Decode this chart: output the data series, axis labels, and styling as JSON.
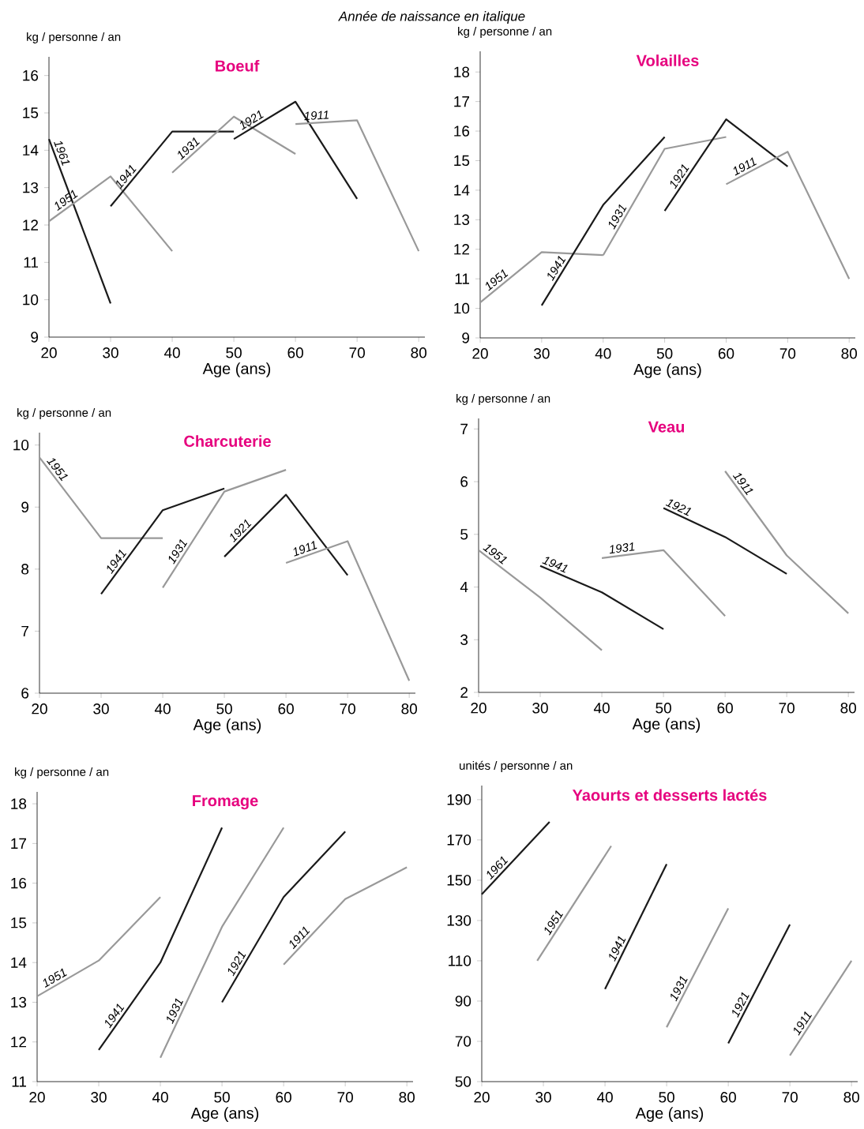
{
  "chart_data": [
    {
      "type": "line",
      "title": "Boeuf",
      "ylabel": "kg / personne / an",
      "xlabel": "Age (ans)",
      "annotations": [
        "Année de naissance en italique"
      ],
      "xlim": [
        20,
        81
      ],
      "ylim": [
        9,
        16.5
      ],
      "xticks": [
        20,
        30,
        40,
        50,
        60,
        70,
        80
      ],
      "yticks": [
        9,
        10,
        11,
        12,
        13,
        14,
        15,
        16
      ],
      "series": [
        {
          "name": "1961",
          "color": "#1a1a1a",
          "x": [
            20,
            30
          ],
          "values": [
            14.3,
            9.9
          ]
        },
        {
          "name": "1951",
          "color": "#999999",
          "x": [
            20,
            30,
            40
          ],
          "values": [
            12.1,
            13.3,
            11.3
          ]
        },
        {
          "name": "1941",
          "color": "#1a1a1a",
          "x": [
            30,
            40,
            50
          ],
          "values": [
            12.5,
            14.5,
            14.5
          ]
        },
        {
          "name": "1931",
          "color": "#999999",
          "x": [
            40,
            50,
            60
          ],
          "values": [
            13.4,
            14.9,
            13.9
          ]
        },
        {
          "name": "1921",
          "color": "#1a1a1a",
          "x": [
            50,
            60,
            70
          ],
          "values": [
            14.3,
            15.3,
            12.7
          ]
        },
        {
          "name": "1911",
          "color": "#999999",
          "x": [
            60,
            70,
            80
          ],
          "values": [
            14.7,
            14.8,
            11.3
          ]
        }
      ]
    },
    {
      "type": "line",
      "title": "Volailles",
      "ylabel": "kg / personne / an",
      "xlabel": "Age (ans)",
      "xlim": [
        20,
        81
      ],
      "ylim": [
        9,
        18.7
      ],
      "xticks": [
        20,
        30,
        40,
        50,
        60,
        70,
        80
      ],
      "yticks": [
        9,
        10,
        11,
        12,
        13,
        14,
        15,
        16,
        17,
        18
      ],
      "series": [
        {
          "name": "1951",
          "color": "#999999",
          "x": [
            20,
            30,
            40
          ],
          "values": [
            10.2,
            11.9,
            11.8
          ]
        },
        {
          "name": "1941",
          "color": "#1a1a1a",
          "x": [
            30,
            40,
            50
          ],
          "values": [
            10.1,
            13.5,
            15.8
          ]
        },
        {
          "name": "1931",
          "color": "#999999",
          "x": [
            40,
            50,
            60
          ],
          "values": [
            11.8,
            15.4,
            15.8
          ]
        },
        {
          "name": "1921",
          "color": "#1a1a1a",
          "x": [
            50,
            60,
            70
          ],
          "values": [
            13.3,
            16.4,
            14.8
          ]
        },
        {
          "name": "1911",
          "color": "#999999",
          "x": [
            60,
            70,
            80
          ],
          "values": [
            14.2,
            15.3,
            11.0
          ]
        }
      ]
    },
    {
      "type": "line",
      "title": "Charcuterie",
      "ylabel": "kg / personne / an",
      "xlabel": "Age (ans)",
      "xlim": [
        20,
        81
      ],
      "ylim": [
        6,
        10.2
      ],
      "xticks": [
        20,
        30,
        40,
        50,
        60,
        70,
        80
      ],
      "yticks": [
        6,
        7,
        8,
        9,
        10
      ],
      "series": [
        {
          "name": "1951",
          "color": "#999999",
          "x": [
            20,
            30,
            40
          ],
          "values": [
            9.8,
            8.5,
            8.5
          ]
        },
        {
          "name": "1941",
          "color": "#1a1a1a",
          "x": [
            30,
            40,
            50
          ],
          "values": [
            7.6,
            8.95,
            9.3
          ]
        },
        {
          "name": "1931",
          "color": "#999999",
          "x": [
            40,
            50,
            60
          ],
          "values": [
            7.7,
            9.25,
            9.6
          ]
        },
        {
          "name": "1921",
          "color": "#1a1a1a",
          "x": [
            50,
            60,
            70
          ],
          "values": [
            8.2,
            9.2,
            7.9
          ]
        },
        {
          "name": "1911",
          "color": "#999999",
          "x": [
            60,
            70,
            80
          ],
          "values": [
            8.1,
            8.45,
            6.2
          ]
        }
      ]
    },
    {
      "type": "line",
      "title": "Veau",
      "ylabel": "kg / personne / an",
      "xlabel": "Age (ans)",
      "xlim": [
        20,
        81
      ],
      "ylim": [
        2,
        7.2
      ],
      "xticks": [
        20,
        30,
        40,
        50,
        60,
        70,
        80
      ],
      "yticks": [
        2,
        3,
        4,
        5,
        6,
        7
      ],
      "series": [
        {
          "name": "1951",
          "color": "#999999",
          "x": [
            20,
            30,
            40
          ],
          "values": [
            4.7,
            3.8,
            2.8
          ]
        },
        {
          "name": "1941",
          "color": "#1a1a1a",
          "x": [
            30,
            40,
            50
          ],
          "values": [
            4.4,
            3.9,
            3.2
          ]
        },
        {
          "name": "1931",
          "color": "#999999",
          "x": [
            40,
            50,
            60
          ],
          "values": [
            4.55,
            4.7,
            3.45
          ]
        },
        {
          "name": "1921",
          "color": "#1a1a1a",
          "x": [
            50,
            60,
            70
          ],
          "values": [
            5.5,
            4.95,
            4.25
          ]
        },
        {
          "name": "1911",
          "color": "#999999",
          "x": [
            60,
            70,
            80
          ],
          "values": [
            6.2,
            4.6,
            3.5
          ]
        }
      ]
    },
    {
      "type": "line",
      "title": "Fromage",
      "ylabel": "kg / personne / an",
      "xlabel": "Age (ans)",
      "xlim": [
        20,
        81
      ],
      "ylim": [
        11,
        18.3
      ],
      "xticks": [
        20,
        30,
        40,
        50,
        60,
        70,
        80
      ],
      "yticks": [
        11,
        12,
        13,
        14,
        15,
        16,
        17,
        18
      ],
      "series": [
        {
          "name": "1951",
          "color": "#999999",
          "x": [
            20,
            30,
            40
          ],
          "values": [
            13.15,
            14.05,
            15.65
          ]
        },
        {
          "name": "1941",
          "color": "#1a1a1a",
          "x": [
            30,
            40,
            50
          ],
          "values": [
            11.8,
            14.0,
            17.4
          ]
        },
        {
          "name": "1931",
          "color": "#999999",
          "x": [
            40,
            50,
            60
          ],
          "values": [
            11.6,
            14.9,
            17.4
          ]
        },
        {
          "name": "1921",
          "color": "#1a1a1a",
          "x": [
            50,
            60,
            70
          ],
          "values": [
            13.0,
            15.65,
            17.3
          ]
        },
        {
          "name": "1911",
          "color": "#999999",
          "x": [
            60,
            70,
            80
          ],
          "values": [
            13.95,
            15.6,
            16.4
          ]
        }
      ]
    },
    {
      "type": "line",
      "title": "Yaourts et desserts lactés",
      "ylabel": "unités / personne / an",
      "xlabel": "Age (ans)",
      "xlim": [
        20,
        81
      ],
      "ylim": [
        50,
        197
      ],
      "xticks": [
        20,
        30,
        40,
        50,
        60,
        70,
        80
      ],
      "yticks": [
        50,
        70,
        90,
        110,
        130,
        150,
        170,
        190
      ],
      "series": [
        {
          "name": "1961",
          "color": "#1a1a1a",
          "x": [
            20,
            31
          ],
          "values": [
            143,
            179
          ]
        },
        {
          "name": "1951",
          "color": "#999999",
          "x": [
            29,
            41
          ],
          "values": [
            110,
            167
          ]
        },
        {
          "name": "1941",
          "color": "#1a1a1a",
          "x": [
            40,
            50
          ],
          "values": [
            96,
            158
          ]
        },
        {
          "name": "1931",
          "color": "#999999",
          "x": [
            50,
            60
          ],
          "values": [
            77,
            136
          ]
        },
        {
          "name": "1921",
          "color": "#1a1a1a",
          "x": [
            60,
            70
          ],
          "values": [
            69,
            128
          ]
        },
        {
          "name": "1911",
          "color": "#999999",
          "x": [
            70,
            80
          ],
          "values": [
            63,
            110
          ]
        }
      ]
    }
  ]
}
